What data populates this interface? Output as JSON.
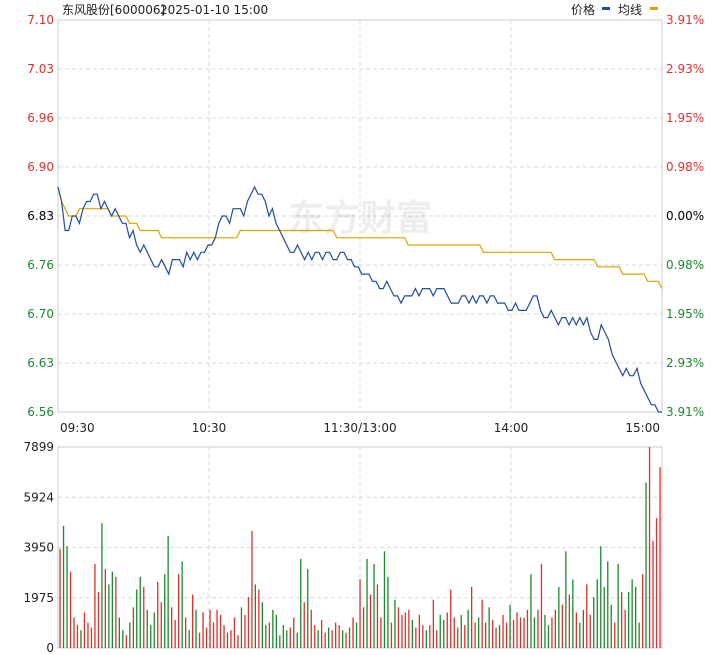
{
  "header": {
    "stock_name": "东风股份[600006]",
    "datetime": "2025-01-10 15:00",
    "legend": [
      {
        "name": "价格",
        "color": "#1f4e9c"
      },
      {
        "name": "均线",
        "color": "#d9a300"
      }
    ]
  },
  "watermark": "东方财富",
  "colors": {
    "up": "#e0302b",
    "down": "#1a8a2e",
    "flat": "#000000",
    "price_line": "#1f4e9c",
    "avg_line": "#d9a300",
    "grid": "#d8d8d8",
    "frame": "#cccccc"
  },
  "chart_data": [
    {
      "type": "line",
      "title": "",
      "prev_close": 6.83,
      "y_ticks": [
        "7.10",
        "7.03",
        "6.96",
        "6.90",
        "6.83",
        "6.76",
        "6.70",
        "6.63",
        "6.56"
      ],
      "y_ticks_right": [
        "3.91%",
        "2.93%",
        "1.95%",
        "0.98%",
        "0.00%",
        "0.98%",
        "1.95%",
        "2.93%",
        "3.91%"
      ],
      "ylim": [
        6.56,
        7.1
      ],
      "x_ticks": [
        "09:30",
        "10:30",
        "11:30/13:00",
        "14:00",
        "15:00"
      ],
      "series": [
        {
          "name": "价格",
          "values": [
            6.87,
            6.85,
            6.81,
            6.81,
            6.83,
            6.83,
            6.82,
            6.84,
            6.85,
            6.85,
            6.86,
            6.86,
            6.84,
            6.85,
            6.84,
            6.83,
            6.84,
            6.83,
            6.82,
            6.82,
            6.8,
            6.81,
            6.79,
            6.78,
            6.79,
            6.78,
            6.77,
            6.76,
            6.76,
            6.77,
            6.76,
            6.75,
            6.77,
            6.77,
            6.77,
            6.76,
            6.78,
            6.77,
            6.78,
            6.77,
            6.78,
            6.78,
            6.79,
            6.79,
            6.8,
            6.82,
            6.83,
            6.83,
            6.82,
            6.84,
            6.84,
            6.84,
            6.83,
            6.85,
            6.86,
            6.87,
            6.86,
            6.86,
            6.85,
            6.83,
            6.84,
            6.82,
            6.81,
            6.8,
            6.79,
            6.78,
            6.78,
            6.79,
            6.78,
            6.77,
            6.78,
            6.77,
            6.78,
            6.78,
            6.77,
            6.78,
            6.78,
            6.77,
            6.77,
            6.78,
            6.78,
            6.77,
            6.77,
            6.76,
            6.76,
            6.75,
            6.75,
            6.75,
            6.74,
            6.74,
            6.73,
            6.73,
            6.74,
            6.73,
            6.72,
            6.72,
            6.71,
            6.72,
            6.72,
            6.72,
            6.73,
            6.72,
            6.73,
            6.73,
            6.73,
            6.72,
            6.73,
            6.73,
            6.73,
            6.72,
            6.71,
            6.71,
            6.71,
            6.72,
            6.72,
            6.71,
            6.72,
            6.71,
            6.72,
            6.72,
            6.71,
            6.72,
            6.72,
            6.71,
            6.71,
            6.71,
            6.7,
            6.7,
            6.71,
            6.7,
            6.7,
            6.7,
            6.71,
            6.72,
            6.72,
            6.7,
            6.69,
            6.69,
            6.7,
            6.69,
            6.68,
            6.69,
            6.69,
            6.68,
            6.69,
            6.68,
            6.69,
            6.68,
            6.69,
            6.67,
            6.66,
            6.66,
            6.68,
            6.67,
            6.66,
            6.64,
            6.63,
            6.62,
            6.61,
            6.62,
            6.61,
            6.61,
            6.62,
            6.6,
            6.59,
            6.58,
            6.57,
            6.57,
            6.56,
            6.56
          ]
        },
        {
          "name": "均线",
          "values": [
            6.87,
            6.85,
            6.84,
            6.83,
            6.83,
            6.83,
            6.84,
            6.84,
            6.84,
            6.84,
            6.84,
            6.84,
            6.84,
            6.84,
            6.84,
            6.83,
            6.83,
            6.83,
            6.83,
            6.83,
            6.82,
            6.82,
            6.82,
            6.81,
            6.81,
            6.81,
            6.81,
            6.81,
            6.81,
            6.8,
            6.8,
            6.8,
            6.8,
            6.8,
            6.8,
            6.8,
            6.8,
            6.8,
            6.8,
            6.8,
            6.8,
            6.8,
            6.8,
            6.8,
            6.8,
            6.8,
            6.8,
            6.8,
            6.8,
            6.8,
            6.8,
            6.81,
            6.81,
            6.81,
            6.81,
            6.81,
            6.81,
            6.81,
            6.81,
            6.81,
            6.81,
            6.81,
            6.81,
            6.81,
            6.81,
            6.81,
            6.81,
            6.81,
            6.81,
            6.81,
            6.81,
            6.81,
            6.81,
            6.81,
            6.81,
            6.81,
            6.81,
            6.81,
            6.8,
            6.8,
            6.8,
            6.8,
            6.8,
            6.8,
            6.8,
            6.8,
            6.8,
            6.8,
            6.8,
            6.8,
            6.8,
            6.8,
            6.8,
            6.8,
            6.8,
            6.8,
            6.8,
            6.8,
            6.79,
            6.79,
            6.79,
            6.79,
            6.79,
            6.79,
            6.79,
            6.79,
            6.79,
            6.79,
            6.79,
            6.79,
            6.79,
            6.79,
            6.79,
            6.79,
            6.79,
            6.79,
            6.79,
            6.79,
            6.79,
            6.78,
            6.78,
            6.78,
            6.78,
            6.78,
            6.78,
            6.78,
            6.78,
            6.78,
            6.78,
            6.78,
            6.78,
            6.78,
            6.78,
            6.78,
            6.78,
            6.78,
            6.78,
            6.78,
            6.78,
            6.77,
            6.77,
            6.77,
            6.77,
            6.77,
            6.77,
            6.77,
            6.77,
            6.77,
            6.77,
            6.77,
            6.77,
            6.76,
            6.76,
            6.76,
            6.76,
            6.76,
            6.76,
            6.76,
            6.75,
            6.75,
            6.75,
            6.75,
            6.75,
            6.75,
            6.75,
            6.74,
            6.74,
            6.74,
            6.74,
            6.73
          ]
        }
      ]
    },
    {
      "type": "bar",
      "title": "",
      "y_ticks": [
        "7899",
        "5924",
        "3950",
        "1975",
        "0"
      ],
      "ylim": [
        0,
        7899
      ],
      "values": [
        3900,
        4800,
        4000,
        3000,
        1200,
        900,
        700,
        1400,
        1000,
        800,
        3300,
        2200,
        4900,
        3100,
        2500,
        3000,
        2800,
        1200,
        700,
        500,
        1000,
        1600,
        2300,
        2800,
        2400,
        1500,
        900,
        1400,
        2600,
        1800,
        2900,
        4400,
        1600,
        1100,
        2900,
        3400,
        1200,
        700,
        2100,
        1500,
        600,
        1400,
        800,
        1500,
        1000,
        1500,
        1300,
        900,
        600,
        700,
        1200,
        500,
        1600,
        1300,
        2000,
        4600,
        2500,
        2300,
        1800,
        900,
        1000,
        1500,
        1300,
        500,
        900,
        700,
        800,
        1200,
        600,
        3500,
        1800,
        3100,
        1500,
        900,
        700,
        1100,
        600,
        800,
        700,
        1000,
        900,
        700,
        600,
        800,
        1200,
        1000,
        2700,
        1600,
        3500,
        2100,
        3300,
        2500,
        1200,
        3800,
        2800,
        1000,
        1900,
        1600,
        1300,
        1400,
        1500,
        1100,
        800,
        1300,
        900,
        700,
        900,
        1900,
        700,
        1300,
        1100,
        1400,
        2300,
        1200,
        800,
        1300,
        900,
        1500,
        2400,
        1000,
        1200,
        1900,
        1000,
        1600,
        1100,
        800,
        900,
        1300,
        1000,
        1700,
        1100,
        1400,
        1200,
        1200,
        1500,
        2900,
        1200,
        1500,
        3300,
        1300,
        900,
        1200,
        1500,
        2400,
        1700,
        3800,
        2100,
        2700,
        1400,
        1000,
        1500,
        2500,
        1300,
        2000,
        2700,
        4000,
        2400,
        3400,
        1700,
        1000,
        3300,
        2200,
        1500,
        2200,
        2700,
        2400,
        1000,
        2900,
        6500,
        7900,
        4200,
        5100,
        7100
      ]
    }
  ]
}
